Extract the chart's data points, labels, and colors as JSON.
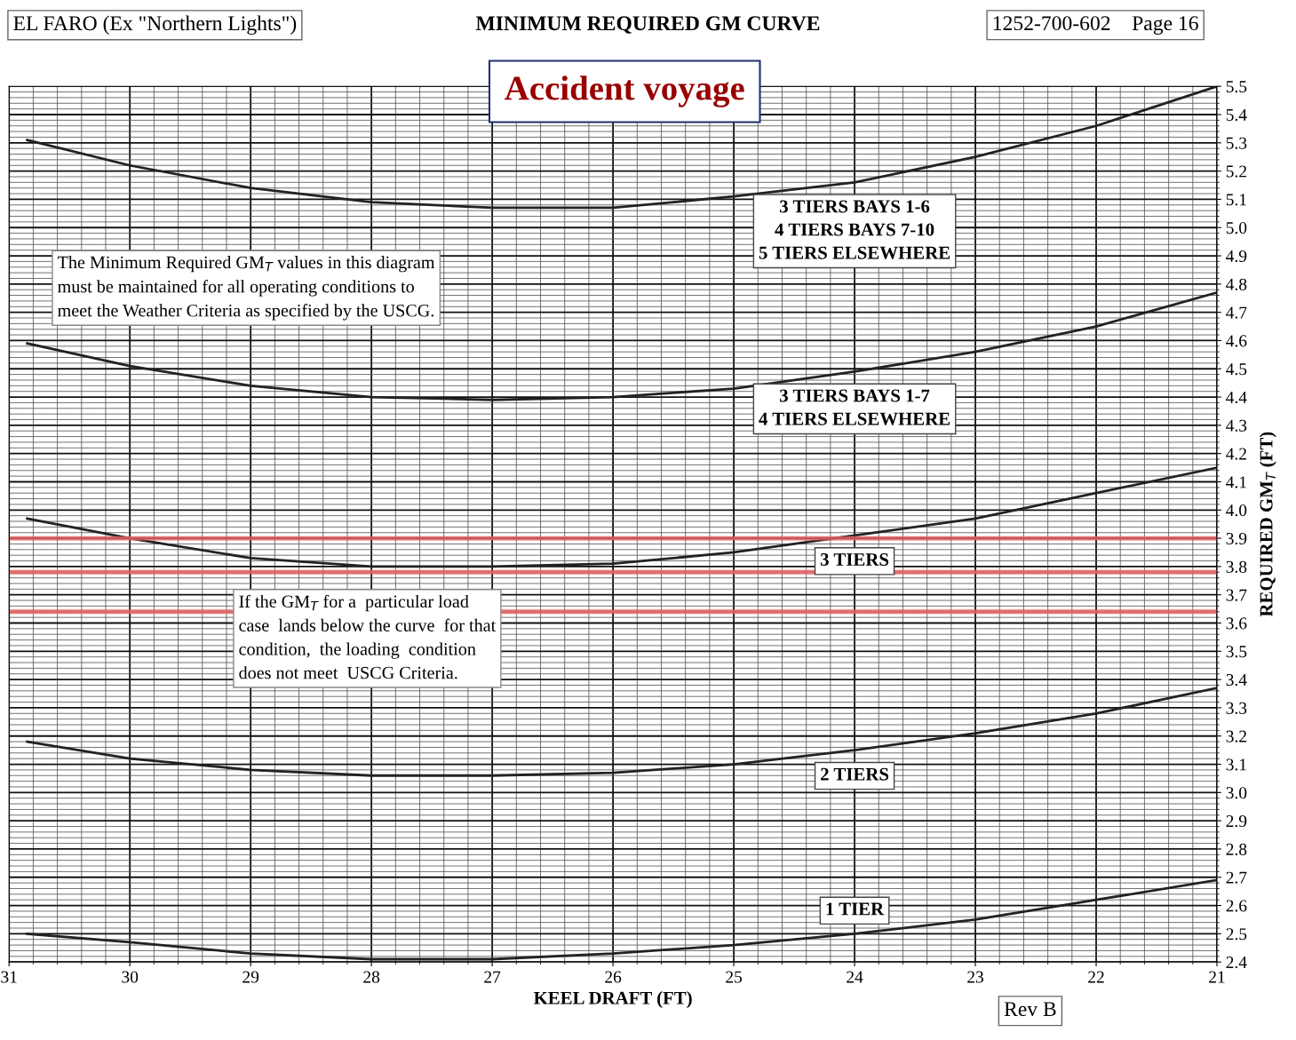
{
  "chart_data": {
    "type": "line",
    "title": "MINIMUM REQUIRED GM CURVE",
    "subtitle": "EL FARO (Ex \"Northern Lights\")",
    "xlabel": "KEEL DRAFT (FT)",
    "ylabel": "REQUIRED GM$_{T}$ (FT)",
    "x": [
      30.85,
      30,
      29,
      28,
      27,
      26,
      25,
      24,
      23,
      22,
      21
    ],
    "series": [
      {
        "name": "3 TIERS BAYS 1-6\n4 TIERS BAYS 7-10\n5 TIERS ELSEWHERE",
        "color": "#222222",
        "values": [
          5.31,
          5.22,
          5.14,
          5.09,
          5.07,
          5.07,
          5.11,
          5.16,
          5.25,
          5.36,
          5.5
        ]
      },
      {
        "name": "3 TIERS BAYS 1-7\n4 TIERS ELSEWHERE",
        "color": "#222222",
        "values": [
          4.59,
          4.51,
          4.44,
          4.4,
          4.39,
          4.4,
          4.43,
          4.49,
          4.56,
          4.65,
          4.77
        ]
      },
      {
        "name": "3 TIERS",
        "color": "#222222",
        "values": [
          3.97,
          3.9,
          3.83,
          3.8,
          3.8,
          3.81,
          3.85,
          3.91,
          3.97,
          4.06,
          4.15
        ]
      },
      {
        "name": "2 TIERS",
        "color": "#222222",
        "values": [
          3.18,
          3.12,
          3.08,
          3.06,
          3.06,
          3.07,
          3.1,
          3.15,
          3.21,
          3.28,
          3.37
        ]
      },
      {
        "name": "1 TIER",
        "color": "#222222",
        "values": [
          2.5,
          2.47,
          2.43,
          2.41,
          2.41,
          2.43,
          2.46,
          2.5,
          2.55,
          2.62,
          2.69
        ]
      }
    ],
    "xlim": [
      31,
      21
    ],
    "xticks": [
      31,
      30,
      29,
      28,
      27,
      26,
      25,
      24,
      23,
      22,
      21
    ],
    "ylim": [
      2.4,
      5.5
    ],
    "yticks": [
      2.4,
      2.5,
      2.6,
      2.7,
      2.8,
      2.9,
      {
        "value": 3,
        "label": "3.0"
      },
      3.1,
      3.2,
      3.3,
      3.4,
      3.5,
      3.6,
      3.7,
      3.8,
      3.9,
      {
        "value": 4,
        "label": "4.0"
      },
      4.1,
      4.2,
      4.3,
      4.4,
      4.5,
      4.6,
      4.7,
      4.8,
      4.9,
      {
        "value": 5,
        "label": "5.0"
      },
      5.1,
      5.2,
      5.3,
      5.4,
      5.5
    ],
    "ref_lines": [
      {
        "axis": "y",
        "value": 3.9,
        "color": "#e06060"
      },
      {
        "axis": "y",
        "value": 3.78,
        "color": "#e06060"
      },
      {
        "axis": "y",
        "value": 3.64,
        "color": "#e06060"
      }
    ],
    "annotations": [
      "1252-700-602    Page 16",
      "Accident voyage",
      "The Minimum Required GM$_{T}$ values in this diagram\nmust be maintained for all operating conditions to\nmeet the Weather Criteria as specified by the USCG.",
      "If the GM$_{T}$ for a  particular load\ncase  lands below the curve  for that\ncondition,  the loading  condition\ndoes not meet  USCG Criteria.",
      "Rev B"
    ],
    "grid": true,
    "marker": "none",
    "line_style": "solid",
    "legend": false
  }
}
